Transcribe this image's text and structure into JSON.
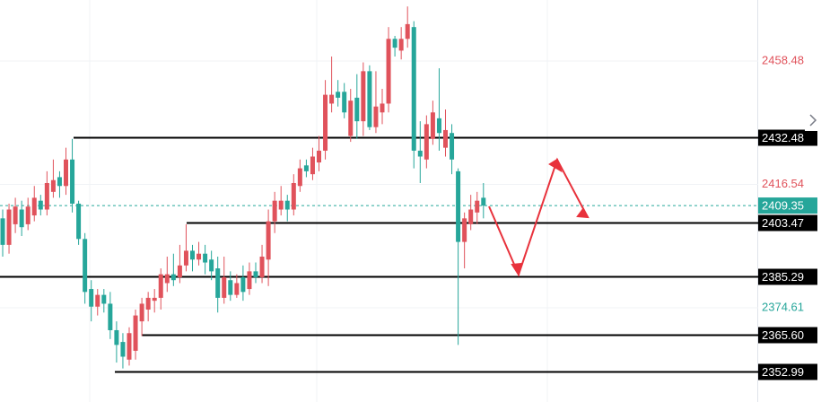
{
  "chart_data": {
    "type": "candlestick",
    "ylim": [
      2342.6,
      2479.2
    ],
    "up_color": "#e0525b",
    "down_color": "#26a69a",
    "candles": {
      "open": [
        2405,
        2396,
        2403,
        2408,
        2403,
        2406,
        2411,
        2408,
        2414,
        2419,
        2416,
        2425,
        2410,
        2398,
        2381,
        2375,
        2379,
        2376,
        2367,
        2363,
        2357,
        2360,
        2370,
        2374,
        2377,
        2378,
        2383,
        2386,
        2385,
        2389,
        2394,
        2391,
        2393,
        2391,
        2388,
        2378,
        2384,
        2379,
        2385,
        2381,
        2387,
        2385,
        2391,
        2404,
        2408,
        2411,
        2408,
        2416,
        2423,
        2420,
        2424,
        2428,
        2444,
        2448,
        2448,
        2433,
        2446,
        2438,
        2455,
        2436,
        2441,
        2444,
        2466,
        2462,
        2466,
        2470,
        2428,
        2425,
        2432,
        2439,
        2429,
        2434,
        2421,
        2397,
        2403,
        2407,
        2412
      ],
      "high": [
        2408,
        2410,
        2412,
        2411,
        2412,
        2416,
        2413,
        2421,
        2425,
        2421,
        2429,
        2432,
        2411,
        2400,
        2384,
        2381,
        2381,
        2380,
        2370,
        2366,
        2368,
        2374,
        2378,
        2380,
        2381,
        2388,
        2392,
        2393,
        2396,
        2403,
        2396,
        2397,
        2396,
        2394,
        2392,
        2392,
        2387,
        2386,
        2389,
        2390,
        2390,
        2396,
        2408,
        2414,
        2416,
        2413,
        2420,
        2425,
        2425,
        2429,
        2433,
        2452,
        2460,
        2452,
        2451,
        2449,
        2454,
        2458,
        2457,
        2455,
        2449,
        2470,
        2467,
        2470,
        2477,
        2472,
        2438,
        2440,
        2445,
        2456,
        2442,
        2437,
        2422,
        2407,
        2413,
        2414,
        2417
      ],
      "low": [
        2392,
        2393,
        2400,
        2399,
        2401,
        2404,
        2406,
        2406,
        2412,
        2412,
        2413,
        2407,
        2396,
        2376,
        2370,
        2372,
        2373,
        2364,
        2356,
        2354,
        2355,
        2357,
        2365,
        2370,
        2373,
        2374,
        2380,
        2382,
        2383,
        2387,
        2387,
        2389,
        2386,
        2384,
        2373,
        2376,
        2377,
        2378,
        2377,
        2379,
        2383,
        2383,
        2382,
        2400,
        2406,
        2404,
        2406,
        2414,
        2419,
        2418,
        2421,
        2425,
        2441,
        2443,
        2439,
        2431,
        2432,
        2433,
        2435,
        2434,
        2437,
        2441,
        2460,
        2459,
        2463,
        2422,
        2417,
        2422,
        2430,
        2428,
        2426,
        2420,
        2362,
        2388,
        2401,
        2403,
        2405
      ],
      "close": [
        2396,
        2408,
        2409,
        2402,
        2409,
        2412,
        2408,
        2417,
        2418,
        2416,
        2425,
        2410,
        2398,
        2380,
        2375,
        2379,
        2376,
        2367,
        2362,
        2358,
        2366,
        2372,
        2376,
        2378,
        2378,
        2386,
        2386,
        2384,
        2389,
        2394,
        2391,
        2393,
        2390,
        2387,
        2378,
        2385,
        2379,
        2383,
        2380,
        2387,
        2385,
        2392,
        2404,
        2411,
        2411,
        2408,
        2417,
        2422,
        2421,
        2426,
        2428,
        2447,
        2447,
        2446,
        2441,
        2445,
        2438,
        2455,
        2436,
        2443,
        2444,
        2466,
        2463,
        2466,
        2471,
        2428,
        2426,
        2437,
        2441,
        2434,
        2435,
        2425,
        2397,
        2405,
        2408,
        2411,
        2409.35
      ]
    },
    "levels": [
      {
        "value": 2432.48,
        "label": "2432.48"
      },
      {
        "value": 2403.47,
        "label": "2403.47"
      },
      {
        "value": 2385.29,
        "label": "2385.29"
      },
      {
        "value": 2365.6,
        "label": "2365.60"
      },
      {
        "value": 2352.99,
        "label": "2352.99"
      }
    ],
    "price_labels": [
      {
        "value": 2458.48,
        "label": "2458.48",
        "color": "#e0525b"
      },
      {
        "value": 2416.54,
        "label": "2416.54",
        "color": "#e0525b"
      },
      {
        "value": 2374.61,
        "label": "2374.61",
        "color": "#26a69a"
      }
    ],
    "current_price": {
      "value": 2409.35,
      "label": "2409.35",
      "color": "#26a69a"
    }
  }
}
